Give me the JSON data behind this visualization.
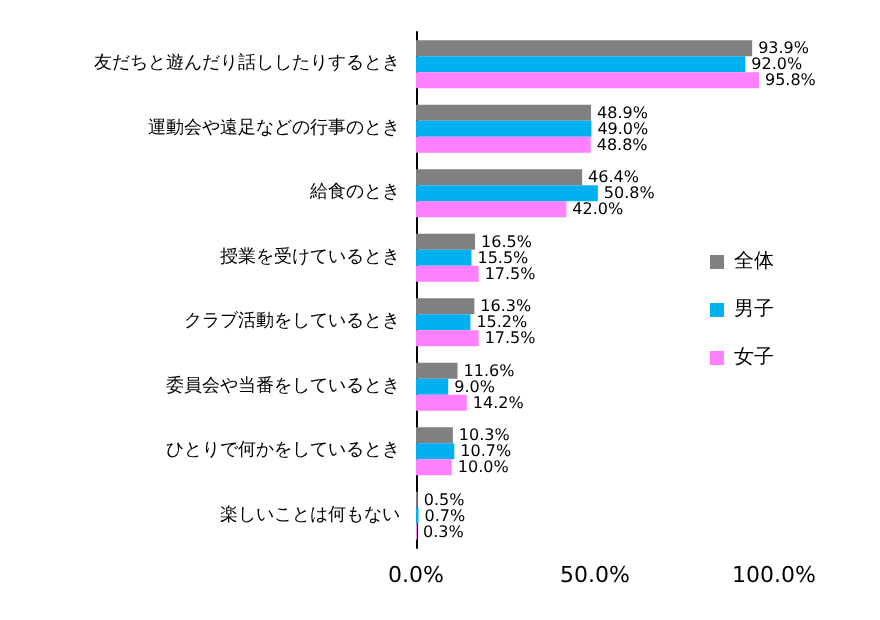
{
  "chart_data": {
    "type": "bar",
    "orientation": "horizontal",
    "categories": [
      "友だちと遊んだり話ししたりするとき",
      "運動会や遠足などの行事のとき",
      "給食のとき",
      "授業を受けているとき",
      "クラブ活動をしているとき",
      "委員会や当番をしているとき",
      "ひとりで何かをしているとき",
      "楽しいことは何もない"
    ],
    "series": [
      {
        "name": "全体",
        "color": "#808080",
        "values": [
          93.9,
          48.9,
          46.4,
          16.5,
          16.3,
          11.6,
          10.3,
          0.5
        ],
        "value_labels": [
          "93.9%",
          "48.9%",
          "46.4%",
          "16.5%",
          "16.3%",
          "11.6%",
          "10.3%",
          "0.5%"
        ]
      },
      {
        "name": "男子",
        "color": "#00b0f0",
        "values": [
          92.0,
          49.0,
          50.8,
          15.5,
          15.2,
          9.0,
          10.7,
          0.7
        ],
        "value_labels": [
          "92.0%",
          "49.0%",
          "50.8%",
          "15.5%",
          "15.2%",
          "9.0%",
          "10.7%",
          "0.7%"
        ]
      },
      {
        "name": "女子",
        "color": "#ff80ff",
        "values": [
          95.8,
          48.8,
          42.0,
          17.5,
          17.5,
          14.2,
          10.0,
          0.3
        ],
        "value_labels": [
          "95.8%",
          "48.8%",
          "42.0%",
          "17.5%",
          "17.5%",
          "14.2%",
          "10.0%",
          "0.3%"
        ]
      }
    ],
    "xlim": [
      0,
      100
    ],
    "xticks": [
      {
        "value": 0,
        "label": "0.0%"
      },
      {
        "value": 50,
        "label": "50.0%"
      },
      {
        "value": 100,
        "label": "100.0%"
      }
    ],
    "grid": false,
    "legend": "right"
  }
}
